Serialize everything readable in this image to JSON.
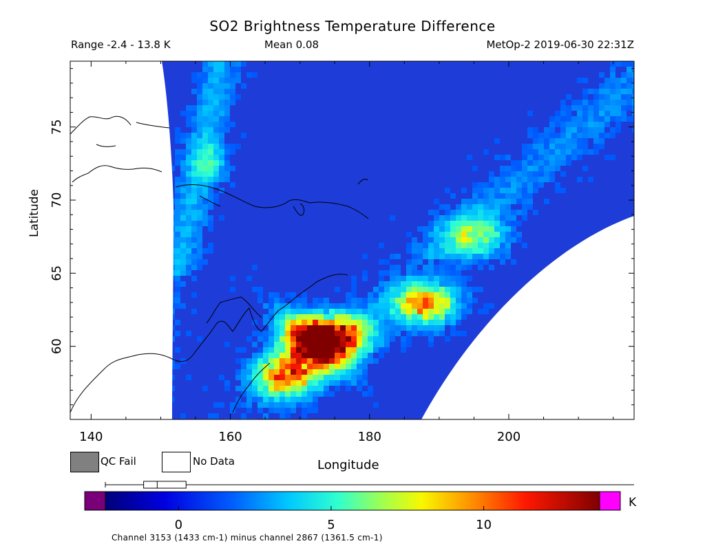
{
  "chart_data": {
    "type": "heatmap",
    "title": "SO2 Brightness Temperature Difference",
    "range_text": "Range -2.4 - 13.8 K",
    "mean_text": "Mean 0.08",
    "satellite_text": "MetOp-2 2019-06-30 22:31Z",
    "xlabel": "Longitude",
    "ylabel": "Latitude",
    "xlim": [
      137,
      218
    ],
    "ylim": [
      55,
      79.5
    ],
    "x_ticks": [
      140,
      160,
      180,
      200
    ],
    "y_ticks": [
      60,
      65,
      70,
      75
    ],
    "colorbar": {
      "min": -2.4,
      "max": 13.8,
      "ticks": [
        0,
        5,
        10
      ],
      "unit": "K",
      "box_range": [
        -1.1,
        0.2
      ],
      "box_median": -0.7,
      "whisker_range": [
        -2.4,
        13.8
      ]
    },
    "legend": [
      {
        "label": "QC Fail",
        "color": "#808080"
      },
      {
        "label": "No Data",
        "color": "#ffffff"
      }
    ],
    "caption": "Channel 3153 (1433 cm-1) minus channel 2867 (1361.5 cm-1)",
    "plume_hotspots": [
      {
        "lon": 168,
        "lat": 58,
        "value": 11.5
      },
      {
        "lon": 172,
        "lat": 60.2,
        "value": 12.5
      },
      {
        "lon": 176,
        "lat": 60.8,
        "value": 11
      },
      {
        "lon": 188,
        "lat": 62.9,
        "value": 11
      },
      {
        "lon": 195,
        "lat": 67.5,
        "value": 7
      }
    ]
  },
  "colors": {
    "under": "#7a007a",
    "over": "#ff00ff",
    "qc_fail": "#808080",
    "background": "#1e3cd8"
  }
}
